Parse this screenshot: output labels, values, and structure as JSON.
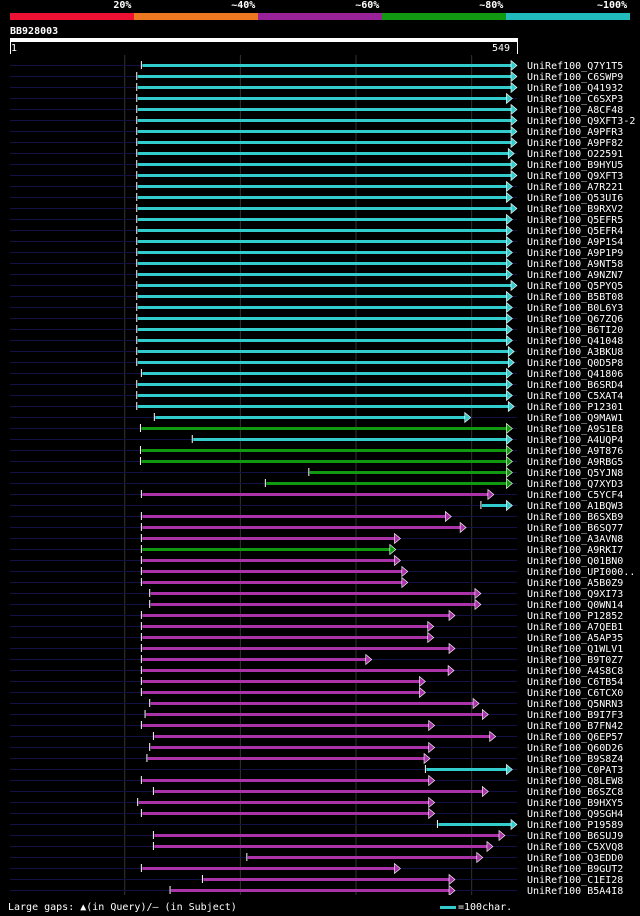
{
  "query": {
    "id": "BB928003",
    "start": "1",
    "end": "549",
    "length": 549
  },
  "legend": [
    {
      "label": "20%",
      "color": "#ee1133"
    },
    {
      "label": "~40%",
      "color": "#ee7722"
    },
    {
      "label": "~60%",
      "color": "#992299"
    },
    {
      "label": "~80%",
      "color": "#119911"
    },
    {
      "label": "~100%",
      "color": "#22bbbb"
    }
  ],
  "colors": {
    "c": "#33cccc",
    "g": "#119911",
    "p": "#aa33aa",
    "grid": "#333333",
    "track": "#111144"
  },
  "footer": {
    "gaps_text": "Large gaps: ▲(in Query)/– (in Subject)",
    "scale_text": "=100char."
  },
  "chart_data": {
    "type": "alignment",
    "xlim": [
      1,
      549
    ],
    "grid_positions": [
      125,
      250,
      375,
      500
    ],
    "hits": [
      {
        "name": "UniRef100_Q7Y1T5",
        "start": 143,
        "end": 549,
        "color": "c"
      },
      {
        "name": "UniRef100_C6SWP9",
        "start": 138,
        "end": 549,
        "color": "c"
      },
      {
        "name": "UniRef100_Q41932",
        "start": 138,
        "end": 549,
        "color": "c"
      },
      {
        "name": "UniRef100_C6SXP3",
        "start": 138,
        "end": 544,
        "color": "c"
      },
      {
        "name": "UniRef100_A8CF48",
        "start": 138,
        "end": 549,
        "color": "c"
      },
      {
        "name": "UniRef100_Q9XFT3-2",
        "start": 138,
        "end": 549,
        "color": "c"
      },
      {
        "name": "UniRef100_A9PFR3",
        "start": 138,
        "end": 549,
        "color": "c"
      },
      {
        "name": "UniRef100_A9PF82",
        "start": 138,
        "end": 549,
        "color": "c"
      },
      {
        "name": "UniRef100_O22591",
        "start": 138,
        "end": 546,
        "color": "c"
      },
      {
        "name": "UniRef100_B9HYU5",
        "start": 138,
        "end": 549,
        "color": "c"
      },
      {
        "name": "UniRef100_Q9XFT3",
        "start": 138,
        "end": 549,
        "color": "c"
      },
      {
        "name": "UniRef100_A7R221",
        "start": 138,
        "end": 544,
        "color": "c"
      },
      {
        "name": "UniRef100_Q53UI6",
        "start": 138,
        "end": 544,
        "color": "c"
      },
      {
        "name": "UniRef100_B9RXV2",
        "start": 138,
        "end": 549,
        "color": "c"
      },
      {
        "name": "UniRef100_Q5EFR5",
        "start": 138,
        "end": 544,
        "color": "c"
      },
      {
        "name": "UniRef100_Q5EFR4",
        "start": 138,
        "end": 544,
        "color": "c"
      },
      {
        "name": "UniRef100_A9P1S4",
        "start": 138,
        "end": 544,
        "color": "c"
      },
      {
        "name": "UniRef100_A9P1P9",
        "start": 138,
        "end": 544,
        "color": "c"
      },
      {
        "name": "UniRef100_A9NT58",
        "start": 138,
        "end": 544,
        "color": "c"
      },
      {
        "name": "UniRef100_A9NZN7",
        "start": 138,
        "end": 544,
        "color": "c"
      },
      {
        "name": "UniRef100_Q5PYQ5",
        "start": 138,
        "end": 549,
        "color": "c"
      },
      {
        "name": "UniRef100_B5BT08",
        "start": 138,
        "end": 544,
        "color": "c"
      },
      {
        "name": "UniRef100_B0L6Y3",
        "start": 138,
        "end": 544,
        "color": "c"
      },
      {
        "name": "UniRef100_Q67ZQ6",
        "start": 138,
        "end": 544,
        "color": "c"
      },
      {
        "name": "UniRef100_B6TI20",
        "start": 138,
        "end": 544,
        "color": "c"
      },
      {
        "name": "UniRef100_Q41048",
        "start": 138,
        "end": 544,
        "color": "c"
      },
      {
        "name": "UniRef100_A3BKU8",
        "start": 138,
        "end": 546,
        "color": "c"
      },
      {
        "name": "UniRef100_Q0D5P8",
        "start": 138,
        "end": 546,
        "color": "c"
      },
      {
        "name": "UniRef100_Q41806",
        "start": 143,
        "end": 544,
        "color": "c"
      },
      {
        "name": "UniRef100_B6SRD4",
        "start": 138,
        "end": 544,
        "color": "c"
      },
      {
        "name": "UniRef100_C5XAT4",
        "start": 138,
        "end": 544,
        "color": "c"
      },
      {
        "name": "UniRef100_P12301",
        "start": 138,
        "end": 546,
        "color": "c"
      },
      {
        "name": "UniRef100_Q9MAW1",
        "start": 157,
        "end": 499,
        "color": "c"
      },
      {
        "name": "UniRef100_A9S1E8",
        "start": 142,
        "end": 544,
        "color": "g"
      },
      {
        "name": "UniRef100_A4UQP4",
        "start": 198,
        "end": 544,
        "color": "c"
      },
      {
        "name": "UniRef100_A9T876",
        "start": 142,
        "end": 544,
        "color": "g"
      },
      {
        "name": "UniRef100_A9RBG5",
        "start": 142,
        "end": 544,
        "color": "g"
      },
      {
        "name": "UniRef100_Q5YJN8",
        "start": 324,
        "end": 544,
        "color": "g"
      },
      {
        "name": "UniRef100_Q7XYD3",
        "start": 277,
        "end": 544,
        "color": "g"
      },
      {
        "name": "UniRef100_C5YCF4",
        "start": 143,
        "end": 524,
        "color": "p"
      },
      {
        "name": "UniRef100_A1BQW3",
        "start": 510,
        "end": 544,
        "color": "c"
      },
      {
        "name": "UniRef100_B6SXB9",
        "start": 143,
        "end": 478,
        "color": "p"
      },
      {
        "name": "UniRef100_B6SQ77",
        "start": 143,
        "end": 494,
        "color": "p"
      },
      {
        "name": "UniRef100_A3AVN8",
        "start": 143,
        "end": 423,
        "color": "p"
      },
      {
        "name": "UniRef100_A9RKI7",
        "start": 143,
        "end": 418,
        "color": "g"
      },
      {
        "name": "UniRef100_Q01BN0",
        "start": 143,
        "end": 423,
        "color": "p"
      },
      {
        "name": "UniRef100_UPI000..",
        "start": 143,
        "end": 431,
        "color": "p"
      },
      {
        "name": "UniRef100_A5B0Z9",
        "start": 143,
        "end": 431,
        "color": "p"
      },
      {
        "name": "UniRef100_Q9XI73",
        "start": 152,
        "end": 510,
        "color": "p"
      },
      {
        "name": "UniRef100_Q0WN14",
        "start": 152,
        "end": 510,
        "color": "p"
      },
      {
        "name": "UniRef100_P12852",
        "start": 143,
        "end": 482,
        "color": "p"
      },
      {
        "name": "UniRef100_A7QEB1",
        "start": 143,
        "end": 459,
        "color": "p"
      },
      {
        "name": "UniRef100_A5AP35",
        "start": 143,
        "end": 459,
        "color": "p"
      },
      {
        "name": "UniRef100_Q1WLV1",
        "start": 143,
        "end": 482,
        "color": "p"
      },
      {
        "name": "UniRef100_B9T0Z7",
        "start": 143,
        "end": 392,
        "color": "p"
      },
      {
        "name": "UniRef100_A4S8C8",
        "start": 143,
        "end": 481,
        "color": "p"
      },
      {
        "name": "UniRef100_C6TB54",
        "start": 143,
        "end": 450,
        "color": "p"
      },
      {
        "name": "UniRef100_C6TCX0",
        "start": 143,
        "end": 450,
        "color": "p"
      },
      {
        "name": "UniRef100_Q5NRN3",
        "start": 152,
        "end": 508,
        "color": "p"
      },
      {
        "name": "UniRef100_B9I7F3",
        "start": 147,
        "end": 518,
        "color": "p"
      },
      {
        "name": "UniRef100_B7FN42",
        "start": 143,
        "end": 460,
        "color": "p"
      },
      {
        "name": "UniRef100_Q6EP57",
        "start": 156,
        "end": 526,
        "color": "p"
      },
      {
        "name": "UniRef100_Q60D26",
        "start": 152,
        "end": 460,
        "color": "p"
      },
      {
        "name": "UniRef100_B9S8Z4",
        "start": 149,
        "end": 455,
        "color": "p"
      },
      {
        "name": "UniRef100_C0PAT3",
        "start": 450,
        "end": 544,
        "color": "c"
      },
      {
        "name": "UniRef100_Q8LEW8",
        "start": 143,
        "end": 460,
        "color": "p"
      },
      {
        "name": "UniRef100_B6SZC8",
        "start": 156,
        "end": 518,
        "color": "p"
      },
      {
        "name": "UniRef100_B9HXY5",
        "start": 139,
        "end": 460,
        "color": "p"
      },
      {
        "name": "UniRef100_Q9SGH4",
        "start": 143,
        "end": 460,
        "color": "p"
      },
      {
        "name": "UniRef100_P19589",
        "start": 463,
        "end": 549,
        "color": "c"
      },
      {
        "name": "UniRef100_B6SUJ9",
        "start": 156,
        "end": 536,
        "color": "p"
      },
      {
        "name": "UniRef100_C5XVQ8",
        "start": 156,
        "end": 523,
        "color": "p"
      },
      {
        "name": "UniRef100_Q3EDD0",
        "start": 257,
        "end": 512,
        "color": "p"
      },
      {
        "name": "UniRef100_B9GUT2",
        "start": 143,
        "end": 423,
        "color": "p"
      },
      {
        "name": "UniRef100_C1EI28",
        "start": 209,
        "end": 482,
        "color": "p"
      },
      {
        "name": "UniRef100_B5A4I8",
        "start": 174,
        "end": 482,
        "color": "p"
      }
    ]
  }
}
